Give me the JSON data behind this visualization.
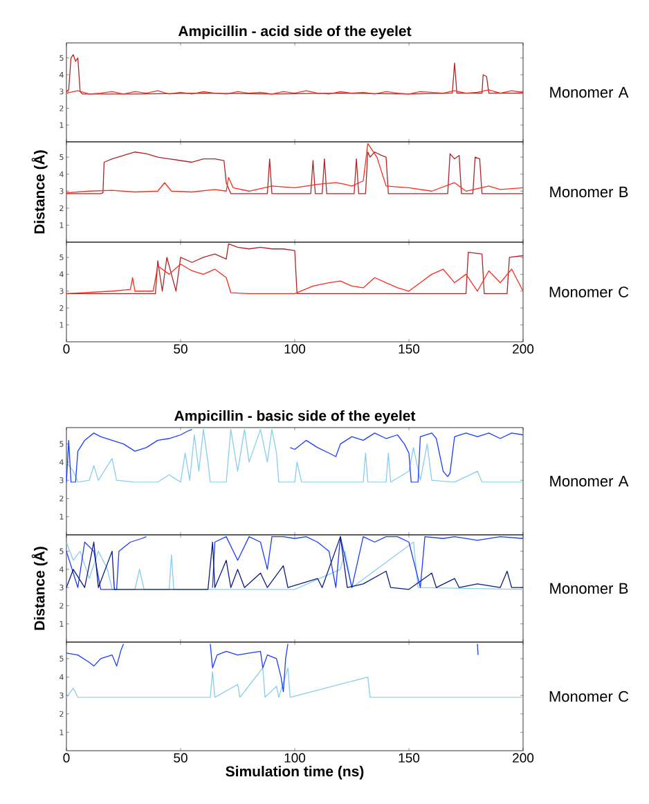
{
  "chart_data": [
    {
      "type": "line",
      "title": "Ampicillin - acid side of the eyelet",
      "xlim": [
        0,
        200
      ],
      "ylim": [
        0,
        5.9
      ],
      "xticks": [
        0,
        50,
        100,
        150,
        200
      ],
      "yticks": [
        1,
        2,
        3,
        4,
        5
      ],
      "tick_labels": "y",
      "annotations": [
        "Monomer A"
      ],
      "series": [
        {
          "color": "#b22222",
          "x": [
            0,
            1,
            2,
            3,
            4,
            5,
            6,
            7,
            30,
            60,
            90,
            120,
            150,
            169,
            170,
            171,
            182,
            182.5,
            184,
            185,
            200
          ],
          "values": [
            3.0,
            3.1,
            5.0,
            5.2,
            4.8,
            5.0,
            3.0,
            2.85,
            2.85,
            2.9,
            2.85,
            2.9,
            2.85,
            2.9,
            4.7,
            2.9,
            2.9,
            4.0,
            3.9,
            2.9,
            2.9
          ]
        },
        {
          "color": "#ff2a1a",
          "x": [
            0,
            5,
            10,
            15,
            20,
            25,
            30,
            35,
            40,
            45,
            50,
            55,
            60,
            65,
            70,
            75,
            80,
            85,
            90,
            95,
            100,
            105,
            110,
            115,
            120,
            125,
            130,
            135,
            140,
            145,
            150,
            155,
            160,
            165,
            170,
            175,
            180,
            185,
            190,
            195,
            200
          ],
          "values": [
            2.9,
            3.05,
            2.85,
            2.9,
            3.0,
            2.85,
            3.0,
            2.9,
            3.05,
            2.85,
            2.95,
            2.85,
            3.0,
            2.9,
            2.85,
            3.0,
            2.9,
            2.95,
            2.85,
            3.0,
            2.9,
            3.05,
            2.9,
            2.85,
            3.0,
            2.9,
            2.95,
            2.85,
            3.0,
            2.9,
            2.85,
            3.0,
            2.95,
            2.9,
            3.05,
            2.9,
            2.95,
            3.1,
            2.9,
            3.05,
            2.95
          ]
        }
      ]
    },
    {
      "type": "line",
      "ylabel": "Distance (Å)",
      "xlim": [
        0,
        200
      ],
      "ylim": [
        0,
        5.9
      ],
      "xticks": [
        0,
        50,
        100,
        150,
        200
      ],
      "yticks": [
        1,
        2,
        3,
        4,
        5
      ],
      "tick_labels": "y",
      "annotations": [
        "Monomer B"
      ],
      "series": [
        {
          "color": "#b22222",
          "x": [
            0,
            15,
            16,
            16.5,
            20,
            25,
            30,
            35,
            40,
            45,
            50,
            55,
            60,
            65,
            69,
            70,
            72,
            80,
            88,
            89,
            90,
            107,
            108,
            109,
            112,
            113,
            114,
            126,
            127,
            128,
            131,
            132,
            133,
            135,
            138,
            140,
            141,
            150,
            167,
            168,
            170,
            172,
            173,
            178,
            179,
            181,
            182,
            200
          ],
          "values": [
            2.85,
            2.85,
            2.9,
            4.7,
            4.9,
            5.1,
            5.3,
            5.2,
            5.0,
            4.9,
            4.8,
            4.7,
            4.9,
            4.9,
            4.8,
            3.5,
            2.85,
            2.85,
            2.85,
            4.9,
            2.85,
            2.85,
            4.8,
            2.85,
            2.85,
            4.9,
            2.85,
            2.85,
            4.9,
            2.85,
            2.85,
            5.3,
            5.0,
            5.3,
            5.1,
            5.0,
            2.85,
            2.85,
            2.85,
            5.2,
            4.9,
            5.1,
            2.85,
            2.85,
            5.0,
            4.9,
            2.85,
            2.85
          ]
        },
        {
          "color": "#ff2a1a",
          "x": [
            0,
            10,
            20,
            30,
            40,
            43,
            46,
            55,
            65,
            70,
            71,
            73,
            80,
            90,
            100,
            110,
            118,
            122,
            125,
            130,
            132,
            134,
            136,
            140,
            150,
            160,
            170,
            175,
            185,
            190,
            200
          ],
          "values": [
            2.9,
            3.0,
            3.05,
            2.95,
            3.0,
            3.5,
            3.0,
            2.95,
            3.1,
            3.0,
            3.8,
            3.2,
            3.0,
            3.3,
            3.2,
            3.4,
            3.5,
            3.4,
            3.3,
            3.6,
            5.8,
            5.4,
            5.0,
            3.3,
            3.2,
            3.0,
            3.5,
            3.0,
            3.3,
            3.1,
            3.2
          ]
        }
      ]
    },
    {
      "type": "line",
      "xlim": [
        0,
        200
      ],
      "ylim": [
        0,
        5.9
      ],
      "xticks": [
        0,
        50,
        100,
        150,
        200
      ],
      "yticks": [
        1,
        2,
        3,
        4,
        5
      ],
      "annotations": [
        "Monomer C"
      ],
      "series": [
        {
          "color": "#b22222",
          "x": [
            0,
            39,
            40,
            42,
            44,
            48,
            50,
            55,
            60,
            65,
            70,
            71,
            75,
            80,
            85,
            90,
            95,
            100,
            101,
            175,
            176,
            182,
            183,
            193,
            194,
            200
          ],
          "values": [
            2.85,
            2.85,
            4.8,
            3.0,
            5.0,
            3.0,
            5.0,
            4.7,
            5.0,
            5.2,
            4.9,
            5.8,
            5.6,
            5.5,
            5.6,
            5.5,
            5.5,
            5.4,
            2.85,
            2.85,
            5.3,
            5.2,
            2.85,
            2.85,
            5.0,
            5.1
          ]
        },
        {
          "color": "#ff2a1a",
          "x": [
            0,
            20,
            28,
            29,
            30,
            38,
            40,
            45,
            50,
            55,
            60,
            65,
            70,
            72,
            80,
            100,
            108,
            115,
            120,
            125,
            130,
            135,
            140,
            145,
            150,
            155,
            160,
            165,
            170,
            175,
            180,
            185,
            190,
            195,
            200
          ],
          "values": [
            2.85,
            3.0,
            3.1,
            3.8,
            3.0,
            3.0,
            4.5,
            4.0,
            4.6,
            4.2,
            4.0,
            4.3,
            3.8,
            2.9,
            2.85,
            2.85,
            3.3,
            3.5,
            3.6,
            3.3,
            3.2,
            3.8,
            3.5,
            3.2,
            3.0,
            3.5,
            4.0,
            4.3,
            3.5,
            4.0,
            3.0,
            4.2,
            3.5,
            4.3,
            3.0
          ]
        }
      ]
    },
    {
      "type": "line",
      "title": "Ampicillin - basic side of the eyelet",
      "xlim": [
        0,
        200
      ],
      "ylim": [
        0,
        5.9
      ],
      "xticks": [
        0,
        50,
        100,
        150,
        200
      ],
      "yticks": [
        1,
        2,
        3,
        4,
        5
      ],
      "tick_labels": "y",
      "annotations": [
        "Monomer A"
      ],
      "series": [
        {
          "color": "#87ceeb",
          "x": [
            0,
            3,
            5,
            10,
            12,
            14,
            20,
            22,
            30,
            40,
            45,
            50,
            52,
            54,
            56,
            58,
            60,
            62,
            63,
            70,
            72,
            75,
            78,
            80,
            85,
            88,
            90,
            92,
            93,
            100,
            101,
            103,
            130,
            131,
            132,
            140,
            141,
            142,
            150,
            152,
            155,
            158,
            160,
            170,
            180,
            182,
            200
          ],
          "values": [
            4.0,
            3.5,
            2.9,
            3.0,
            3.8,
            3.0,
            4.2,
            3.0,
            2.9,
            2.9,
            3.3,
            2.9,
            4.5,
            3.0,
            5.5,
            3.5,
            5.8,
            4.0,
            2.9,
            2.9,
            5.8,
            3.5,
            5.8,
            4.0,
            5.8,
            4.0,
            5.8,
            4.5,
            2.9,
            2.9,
            4.0,
            2.9,
            2.9,
            4.5,
            2.9,
            2.9,
            4.5,
            2.9,
            3.5,
            4.8,
            3.0,
            5.0,
            3.0,
            2.9,
            3.5,
            2.9,
            2.9
          ]
        },
        {
          "color": "#1a3cff",
          "x": [
            0,
            1,
            2,
            4,
            5,
            8,
            12,
            15,
            20,
            25,
            30,
            35,
            40,
            45,
            50,
            53,
            55,
            76,
            98,
            100,
            105,
            110,
            115,
            118,
            120,
            125,
            130,
            135,
            140,
            145,
            148,
            150,
            151,
            154,
            155,
            160,
            162,
            165,
            167,
            168,
            170,
            175,
            180,
            185,
            190,
            195,
            200
          ],
          "values": [
            2.9,
            5.2,
            2.9,
            2.9,
            4.6,
            5.2,
            5.6,
            5.4,
            5.2,
            5.0,
            4.6,
            4.8,
            5.2,
            5.3,
            5.5,
            5.7,
            5.8,
            null,
            4.8,
            4.7,
            5.2,
            4.8,
            4.5,
            4.3,
            5.0,
            5.4,
            5.2,
            5.6,
            5.3,
            5.5,
            5.0,
            4.5,
            2.9,
            2.9,
            5.4,
            5.6,
            5.3,
            3.5,
            3.2,
            3.4,
            5.4,
            5.6,
            5.4,
            5.6,
            5.3,
            5.6,
            5.5
          ]
        }
      ]
    },
    {
      "type": "line",
      "ylabel": "Distance (Å)",
      "xlim": [
        0,
        200
      ],
      "ylim": [
        0,
        5.9
      ],
      "xticks": [
        0,
        50,
        100,
        150,
        200
      ],
      "yticks": [
        1,
        2,
        3,
        4,
        5
      ],
      "tick_labels": "y",
      "annotations": [
        "Monomer B"
      ],
      "series": [
        {
          "color": "#87ceeb",
          "x": [
            0,
            3,
            6,
            10,
            14,
            18,
            20,
            30,
            32,
            34,
            45,
            46,
            47,
            62,
            64,
            100,
            120,
            122,
            125,
            152,
            154,
            200
          ],
          "values": [
            5.5,
            4.5,
            5.0,
            3.5,
            5.0,
            4.0,
            2.9,
            2.9,
            4.0,
            2.9,
            2.9,
            4.8,
            2.9,
            2.9,
            2.9,
            2.9,
            4.0,
            5.0,
            3.0,
            5.5,
            3.0,
            2.9
          ]
        },
        {
          "color": "#1a3cff",
          "x": [
            0,
            5,
            8,
            12,
            15,
            22,
            23,
            28,
            33,
            35,
            50,
            64,
            65,
            70,
            75,
            80,
            85,
            88,
            90,
            95,
            100,
            105,
            110,
            115,
            118,
            120,
            125,
            130,
            135,
            140,
            145,
            150,
            155,
            157,
            165,
            170,
            180,
            190,
            200
          ],
          "values": [
            5.0,
            3.0,
            5.5,
            5.0,
            2.9,
            2.9,
            5.0,
            5.5,
            5.7,
            5.8,
            null,
            3.0,
            5.5,
            5.8,
            4.5,
            5.8,
            5.5,
            4.0,
            5.8,
            5.8,
            5.7,
            5.8,
            5.5,
            5.0,
            3.0,
            5.8,
            3.0,
            5.8,
            5.5,
            5.8,
            5.8,
            5.5,
            3.0,
            5.8,
            5.7,
            5.8,
            5.6,
            5.8,
            5.7
          ]
        },
        {
          "color": "#0a1a80",
          "x": [
            0,
            3,
            8,
            12,
            14,
            20,
            21,
            62,
            64,
            65,
            70,
            72,
            75,
            78,
            85,
            88,
            95,
            97,
            110,
            112,
            120,
            123,
            130,
            140,
            142,
            150,
            160,
            162,
            170,
            172,
            180,
            190,
            193,
            195,
            200
          ],
          "values": [
            3.0,
            4.0,
            3.0,
            5.5,
            3.0,
            5.0,
            2.9,
            2.9,
            5.5,
            3.0,
            4.5,
            3.0,
            4.0,
            3.0,
            3.8,
            3.0,
            4.2,
            3.0,
            3.5,
            3.0,
            5.8,
            3.0,
            3.2,
            3.9,
            3.0,
            2.9,
            3.8,
            3.0,
            3.5,
            3.0,
            3.2,
            3.0,
            3.9,
            3.0,
            3.0
          ]
        }
      ]
    },
    {
      "type": "line",
      "xlabel": "Simulation time (ns)",
      "xlim": [
        0,
        200
      ],
      "ylim": [
        0,
        5.9
      ],
      "xticks": [
        0,
        50,
        100,
        150,
        200
      ],
      "yticks": [
        1,
        2,
        3,
        4,
        5
      ],
      "annotations": [
        "Monomer C"
      ],
      "series": [
        {
          "color": "#87ceeb",
          "x": [
            0,
            3,
            5,
            30,
            40,
            63,
            64,
            65,
            75,
            76,
            86,
            87,
            92,
            93,
            97,
            98,
            132,
            133,
            200
          ],
          "values": [
            2.9,
            3.4,
            2.9,
            2.9,
            2.9,
            2.9,
            4.3,
            2.9,
            3.6,
            2.9,
            4.5,
            2.9,
            3.5,
            2.9,
            4.5,
            2.9,
            4.0,
            2.9,
            2.9
          ]
        },
        {
          "color": "#1a3cff",
          "x": [
            0,
            5,
            10,
            12,
            15,
            20,
            22,
            24,
            25,
            40,
            63,
            64,
            66,
            70,
            75,
            80,
            85,
            86,
            88,
            92,
            94,
            95,
            96,
            97,
            140,
            180,
            180.3
          ],
          "values": [
            5.3,
            5.2,
            4.8,
            4.6,
            5.0,
            5.2,
            4.6,
            5.5,
            5.8,
            null,
            5.8,
            4.5,
            5.2,
            5.4,
            5.2,
            5.3,
            5.4,
            4.5,
            5.2,
            5.0,
            4.0,
            3.2,
            5.0,
            5.8,
            null,
            5.8,
            5.2
          ]
        }
      ]
    }
  ]
}
